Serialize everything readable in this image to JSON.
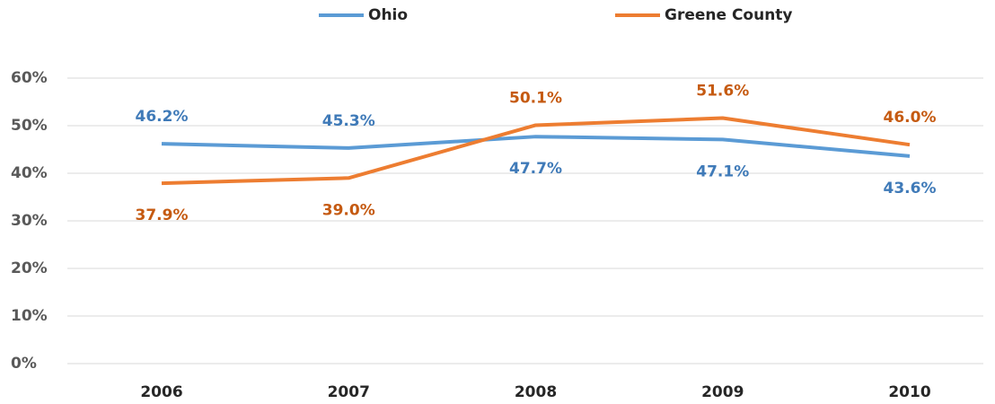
{
  "chart_data": {
    "type": "line",
    "categories": [
      "2006",
      "2007",
      "2008",
      "2009",
      "2010"
    ],
    "series": [
      {
        "name": "Ohio",
        "color": "#5b9bd5",
        "label_color": "#3f7ab8",
        "values": [
          46.2,
          45.3,
          47.7,
          47.1,
          43.6
        ],
        "value_labels": [
          "46.2%",
          "45.3%",
          "47.7%",
          "47.1%",
          "43.6%"
        ]
      },
      {
        "name": "Greene County",
        "color": "#ed7d31",
        "label_color": "#c55a11",
        "values": [
          37.9,
          39.0,
          50.1,
          51.6,
          46.0
        ],
        "value_labels": [
          "37.9%",
          "39.0%",
          "50.1%",
          "51.6%",
          "46.0%"
        ]
      }
    ],
    "ylim": [
      0,
      60
    ],
    "yticks": [
      {
        "value": 0,
        "label": "0%"
      },
      {
        "value": 10,
        "label": "10%"
      },
      {
        "value": 20,
        "label": "20%"
      },
      {
        "value": 30,
        "label": "30%"
      },
      {
        "value": 40,
        "label": "40%"
      },
      {
        "value": 50,
        "label": "50%"
      },
      {
        "value": 60,
        "label": "60%"
      }
    ],
    "grid": true,
    "legend": "top"
  }
}
